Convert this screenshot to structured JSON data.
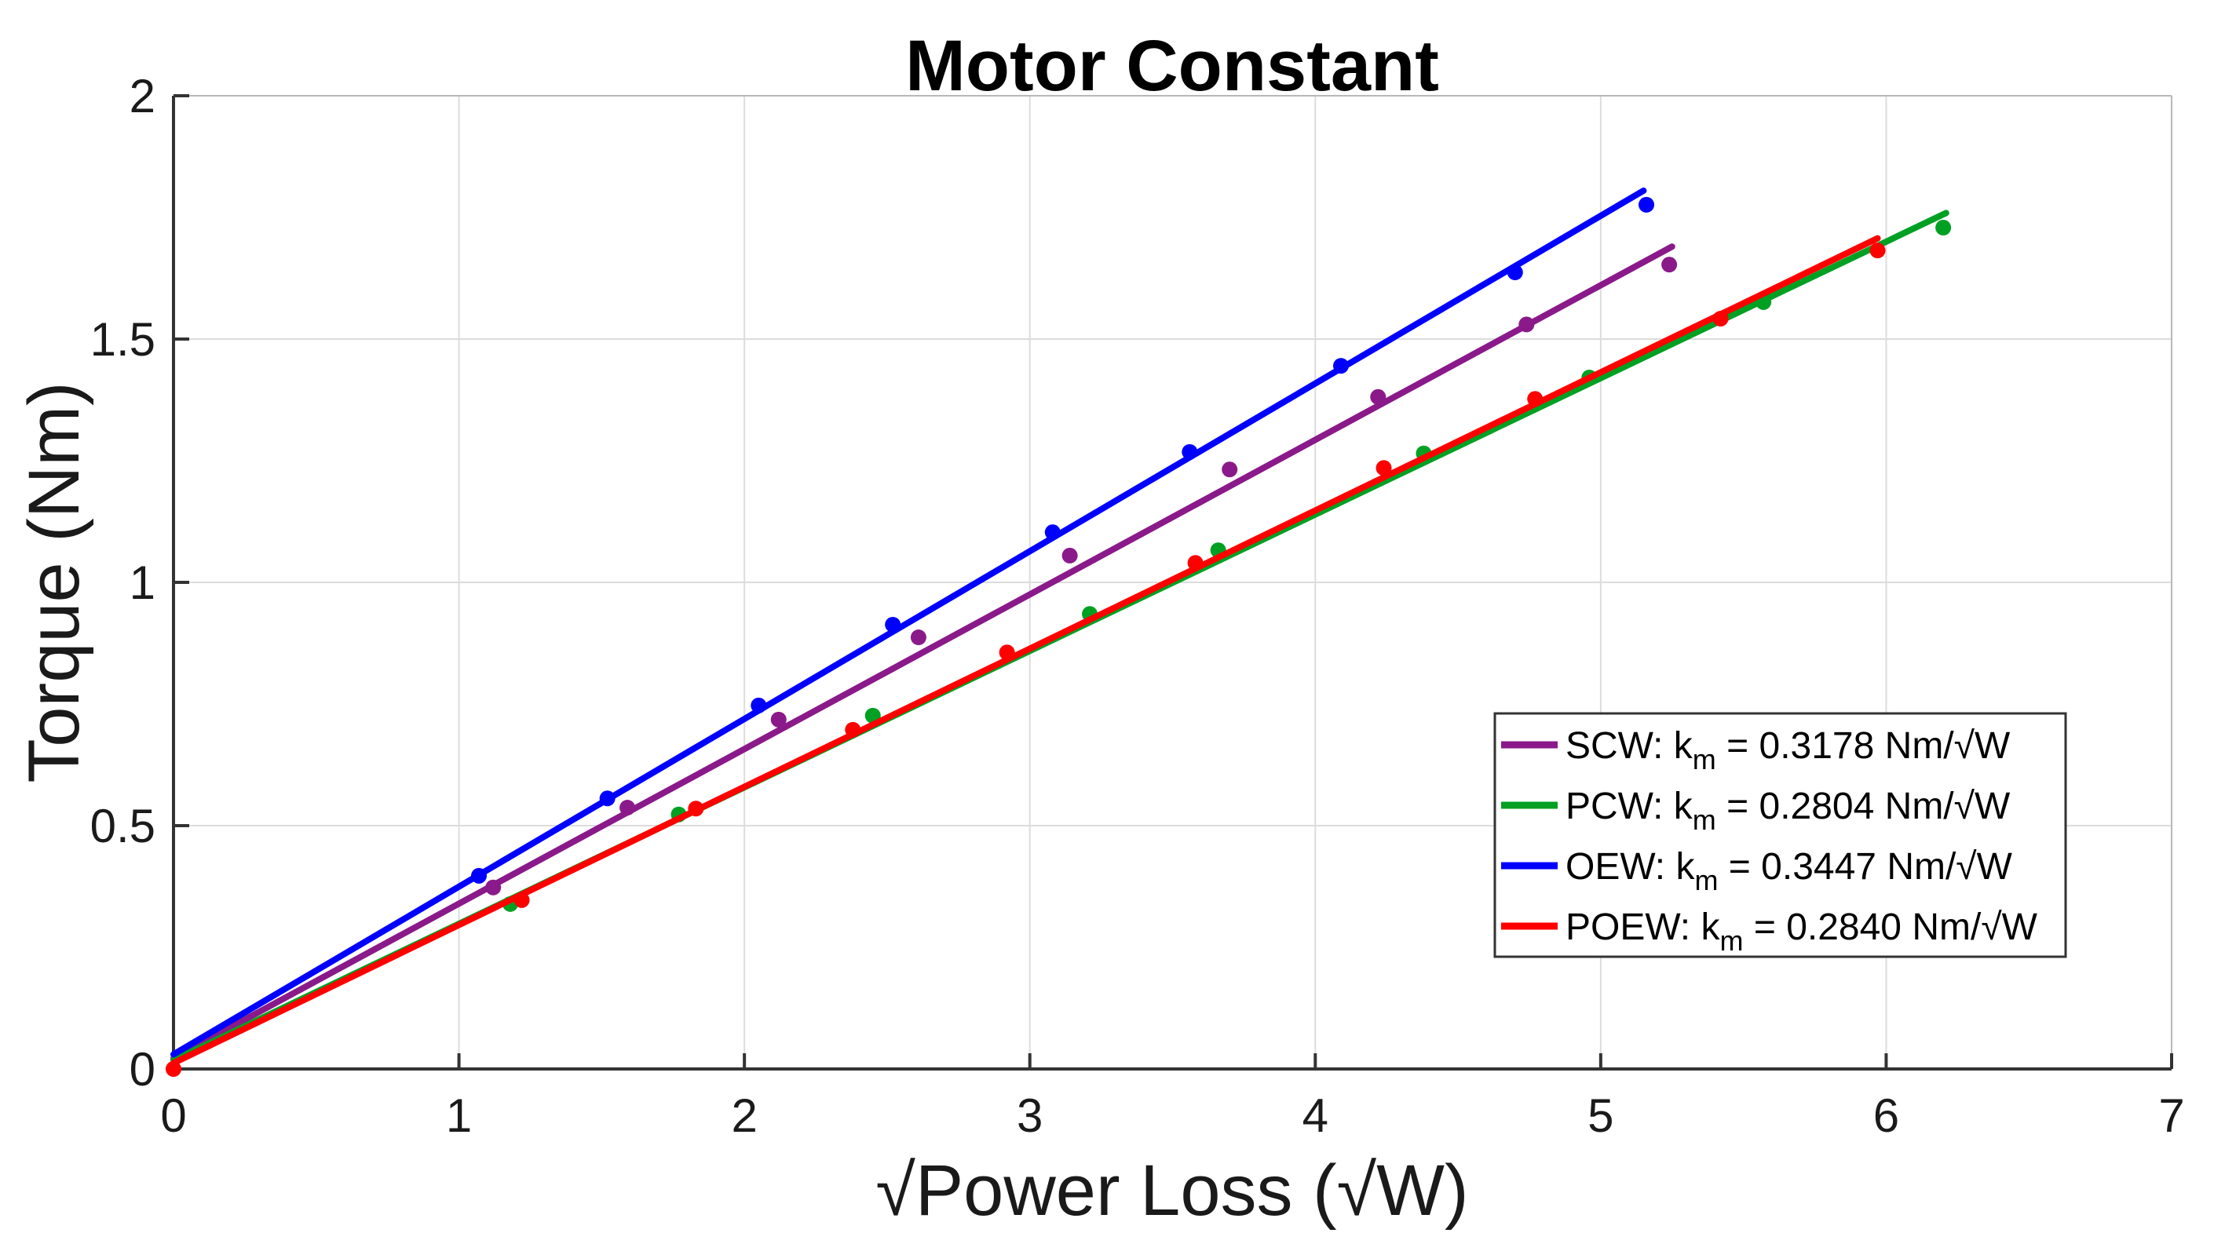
{
  "figure": {
    "background_color": "#FFFFFF",
    "plot_border_color": "#333333",
    "grid_color": "#DCDCDC"
  },
  "chart_data": {
    "type": "scatter",
    "subtype": "scatter-with-linear-fit-lines",
    "title": "Motor Constant",
    "xlabel": "√Power Loss (√W)",
    "ylabel": "Torque (Nm)",
    "xlim": [
      0,
      7
    ],
    "ylim": [
      0,
      2
    ],
    "xticks": [
      0,
      1,
      2,
      3,
      4,
      5,
      6,
      7
    ],
    "xtick_labels": [
      "0",
      "1",
      "2",
      "3",
      "4",
      "5",
      "6",
      "7"
    ],
    "yticks": [
      0,
      0.5,
      1,
      1.5,
      2
    ],
    "ytick_labels": [
      "0",
      "0.5",
      "1",
      "1.5",
      "2"
    ],
    "grid": true,
    "legend_position": "inside-lower-right",
    "series": [
      {
        "id": "scw",
        "name": "SCW",
        "km": "0.3178",
        "units": "Nm/√W",
        "color": "#8A1A8A",
        "marker": "circle",
        "fit_line": {
          "x0": 0,
          "y0": 0.022,
          "x1": 5.25,
          "y1": 1.69
        },
        "points": [
          [
            1.12,
            0.373
          ],
          [
            1.59,
            0.537
          ],
          [
            2.12,
            0.718
          ],
          [
            2.61,
            0.887
          ],
          [
            3.14,
            1.055
          ],
          [
            3.7,
            1.232
          ],
          [
            4.22,
            1.381
          ],
          [
            4.74,
            1.53
          ],
          [
            5.24,
            1.653
          ]
        ],
        "legend": {
          "label_full": "SCW: k_m = 0.3178 Nm/√W",
          "label_prefix": "SCW: k",
          "label_sub": "m",
          "label_suffix": " = 0.3178 Nm/√W"
        }
      },
      {
        "id": "pcw",
        "name": "PCW",
        "km": "0.2804",
        "units": "Nm/√W",
        "color": "#00A023",
        "marker": "circle",
        "fit_line": {
          "x0": 0,
          "y0": 0.018,
          "x1": 6.21,
          "y1": 1.759
        },
        "points": [
          [
            1.18,
            0.339
          ],
          [
            1.77,
            0.523
          ],
          [
            2.45,
            0.726
          ],
          [
            3.21,
            0.935
          ],
          [
            3.66,
            1.066
          ],
          [
            4.38,
            1.265
          ],
          [
            4.96,
            1.421
          ],
          [
            5.57,
            1.576
          ],
          [
            6.2,
            1.729
          ]
        ],
        "legend": {
          "label_full": "PCW: k_m = 0.2804 Nm/√W",
          "label_prefix": "PCW: k",
          "label_sub": "m",
          "label_suffix": " = 0.2804 Nm/√W"
        }
      },
      {
        "id": "oew",
        "name": "OEW",
        "km": "0.3447",
        "units": "Nm/√W",
        "color": "#0000FF",
        "marker": "circle",
        "fit_line": {
          "x0": 0,
          "y0": 0.03,
          "x1": 5.15,
          "y1": 1.805
        },
        "points": [
          [
            1.07,
            0.397
          ],
          [
            1.52,
            0.556
          ],
          [
            2.05,
            0.747
          ],
          [
            2.52,
            0.913
          ],
          [
            3.08,
            1.103
          ],
          [
            3.56,
            1.268
          ],
          [
            4.09,
            1.445
          ],
          [
            4.7,
            1.637
          ],
          [
            5.16,
            1.776
          ]
        ],
        "legend": {
          "label_full": "OEW: k_m = 0.3447 Nm/√W",
          "label_prefix": "OEW: k",
          "label_sub": "m",
          "label_suffix": " = 0.3447 Nm/√W"
        }
      },
      {
        "id": "poew",
        "name": "POEW",
        "km": "0.2840",
        "units": "Nm/√W",
        "color": "#FF0000",
        "marker": "circle",
        "fit_line": {
          "x0": 0,
          "y0": 0.012,
          "x1": 5.97,
          "y1": 1.707
        },
        "points": [
          [
            0.0,
            0.0
          ],
          [
            1.22,
            0.347
          ],
          [
            1.83,
            0.535
          ],
          [
            2.38,
            0.697
          ],
          [
            2.92,
            0.856
          ],
          [
            3.58,
            1.04
          ],
          [
            4.24,
            1.235
          ],
          [
            4.77,
            1.377
          ],
          [
            5.42,
            1.542
          ],
          [
            5.97,
            1.682
          ]
        ],
        "legend": {
          "label_full": "POEW: k_m = 0.2840 Nm/√W",
          "label_prefix": "POEW: k",
          "label_sub": "m",
          "label_suffix": " = 0.2840 Nm/√W"
        }
      }
    ]
  }
}
